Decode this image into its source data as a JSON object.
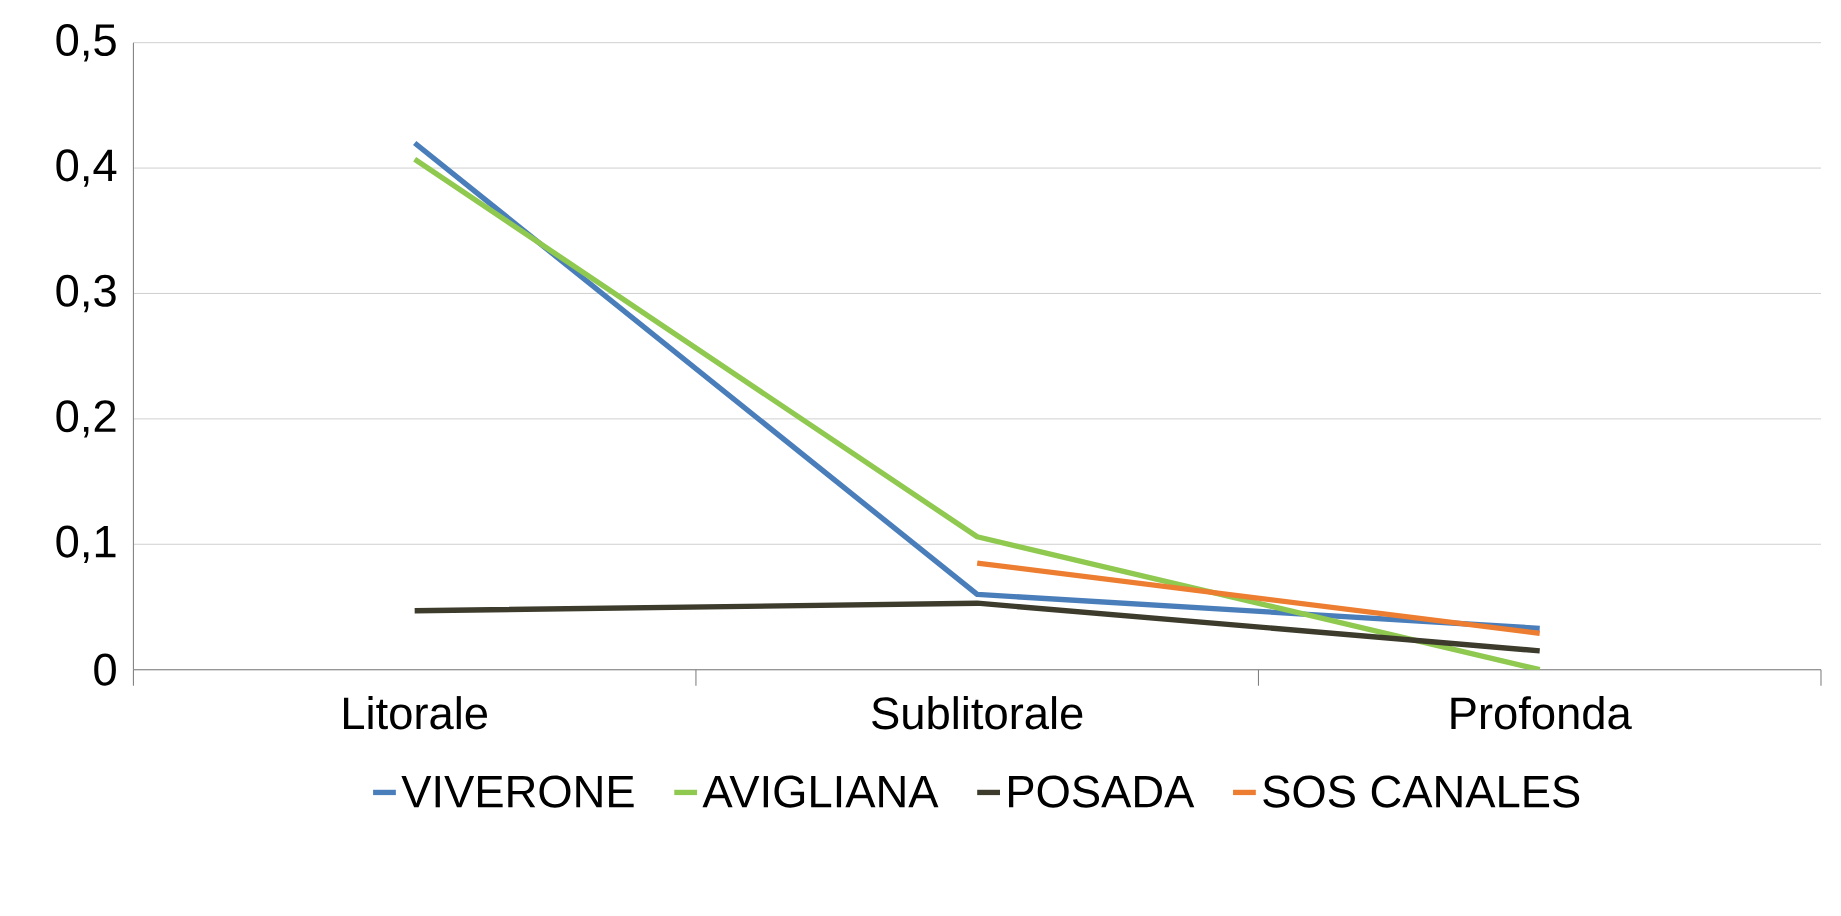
{
  "chart_data": {
    "type": "line",
    "categories": [
      "Litorale",
      "Sublitorale",
      "Profonda"
    ],
    "series": [
      {
        "name": "VIVERONE",
        "color": "#4a7ebb",
        "values": [
          0.42,
          0.06,
          0.033
        ]
      },
      {
        "name": "AVIGLIANA",
        "color": "#8fc94f",
        "values": [
          0.407,
          0.106,
          0.0
        ]
      },
      {
        "name": "POSADA",
        "color": "#3d3b2c",
        "values": [
          0.047,
          0.053,
          0.015
        ]
      },
      {
        "name": "SOS CANALES",
        "color": "#ed7d31",
        "values": [
          null,
          0.085,
          0.029
        ]
      }
    ],
    "ylim": [
      0,
      0.5
    ],
    "yticks": [
      {
        "value": 0,
        "label": "0"
      },
      {
        "value": 0.1,
        "label": "0,1"
      },
      {
        "value": 0.2,
        "label": "0,2"
      },
      {
        "value": 0.3,
        "label": "0,3"
      },
      {
        "value": 0.4,
        "label": "0,4"
      },
      {
        "value": 0.5,
        "label": "0,5"
      }
    ],
    "grid": "y",
    "legend": "bottom",
    "marker": "none",
    "line_style": "solid"
  }
}
